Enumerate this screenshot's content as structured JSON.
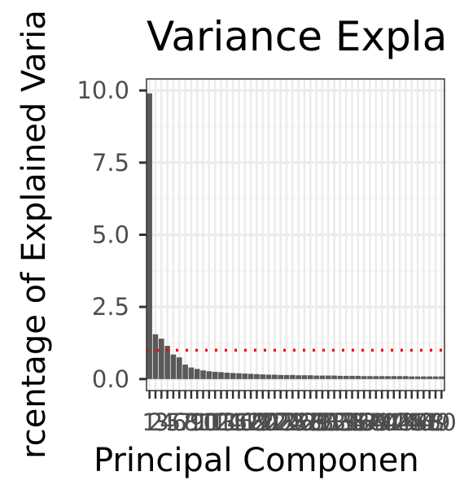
{
  "chart_data": {
    "type": "bar",
    "title": "Variance Expla",
    "xlabel": "Principal Componen",
    "ylabel": "rcentage of Explained Varia",
    "ylim": [
      -0.4,
      10.4
    ],
    "yticks": [
      "0.0",
      "2.5",
      "5.0",
      "7.5",
      "10.0"
    ],
    "ytick_values": [
      0,
      2.5,
      5,
      7.5,
      10
    ],
    "xtick_labels": [
      "1",
      "2",
      "3",
      "4",
      "5",
      "6",
      "7",
      "8",
      "9",
      "10",
      "11",
      "12",
      "13",
      "14",
      "15",
      "16",
      "17",
      "18",
      "19",
      "20",
      "21",
      "22",
      "23",
      "24",
      "25",
      "26",
      "27",
      "28",
      "29",
      "30",
      "31",
      "32",
      "33",
      "34",
      "35",
      "36",
      "37",
      "38",
      "39",
      "40",
      "41",
      "42",
      "43",
      "44",
      "45",
      "46",
      "47",
      "48",
      "49",
      "50"
    ],
    "categories": [
      "1",
      "2",
      "3",
      "4",
      "5",
      "6",
      "7",
      "8",
      "9",
      "10",
      "11",
      "12",
      "13",
      "14",
      "15",
      "16",
      "17",
      "18",
      "19",
      "20",
      "21",
      "22",
      "23",
      "24",
      "25",
      "26",
      "27",
      "28",
      "29",
      "30",
      "31",
      "32",
      "33",
      "34",
      "35",
      "36",
      "37",
      "38",
      "39",
      "40",
      "41",
      "42",
      "43",
      "44",
      "45",
      "46",
      "47",
      "48",
      "49",
      "50"
    ],
    "values": [
      9.9,
      1.55,
      1.4,
      1.15,
      0.85,
      0.75,
      0.5,
      0.4,
      0.35,
      0.3,
      0.27,
      0.25,
      0.24,
      0.22,
      0.21,
      0.2,
      0.19,
      0.18,
      0.17,
      0.16,
      0.15,
      0.15,
      0.14,
      0.14,
      0.14,
      0.13,
      0.13,
      0.13,
      0.12,
      0.12,
      0.12,
      0.12,
      0.11,
      0.11,
      0.11,
      0.11,
      0.1,
      0.1,
      0.1,
      0.1,
      0.1,
      0.1,
      0.1,
      0.1,
      0.09,
      0.09,
      0.09,
      0.09,
      0.09,
      0.09
    ],
    "reference_line": {
      "y": 1,
      "style": "dotted",
      "color": "#ff0000"
    },
    "bar_color": "#595959",
    "grid": true,
    "panel_background": "#ffffff",
    "grid_color": "#ebebeb"
  }
}
